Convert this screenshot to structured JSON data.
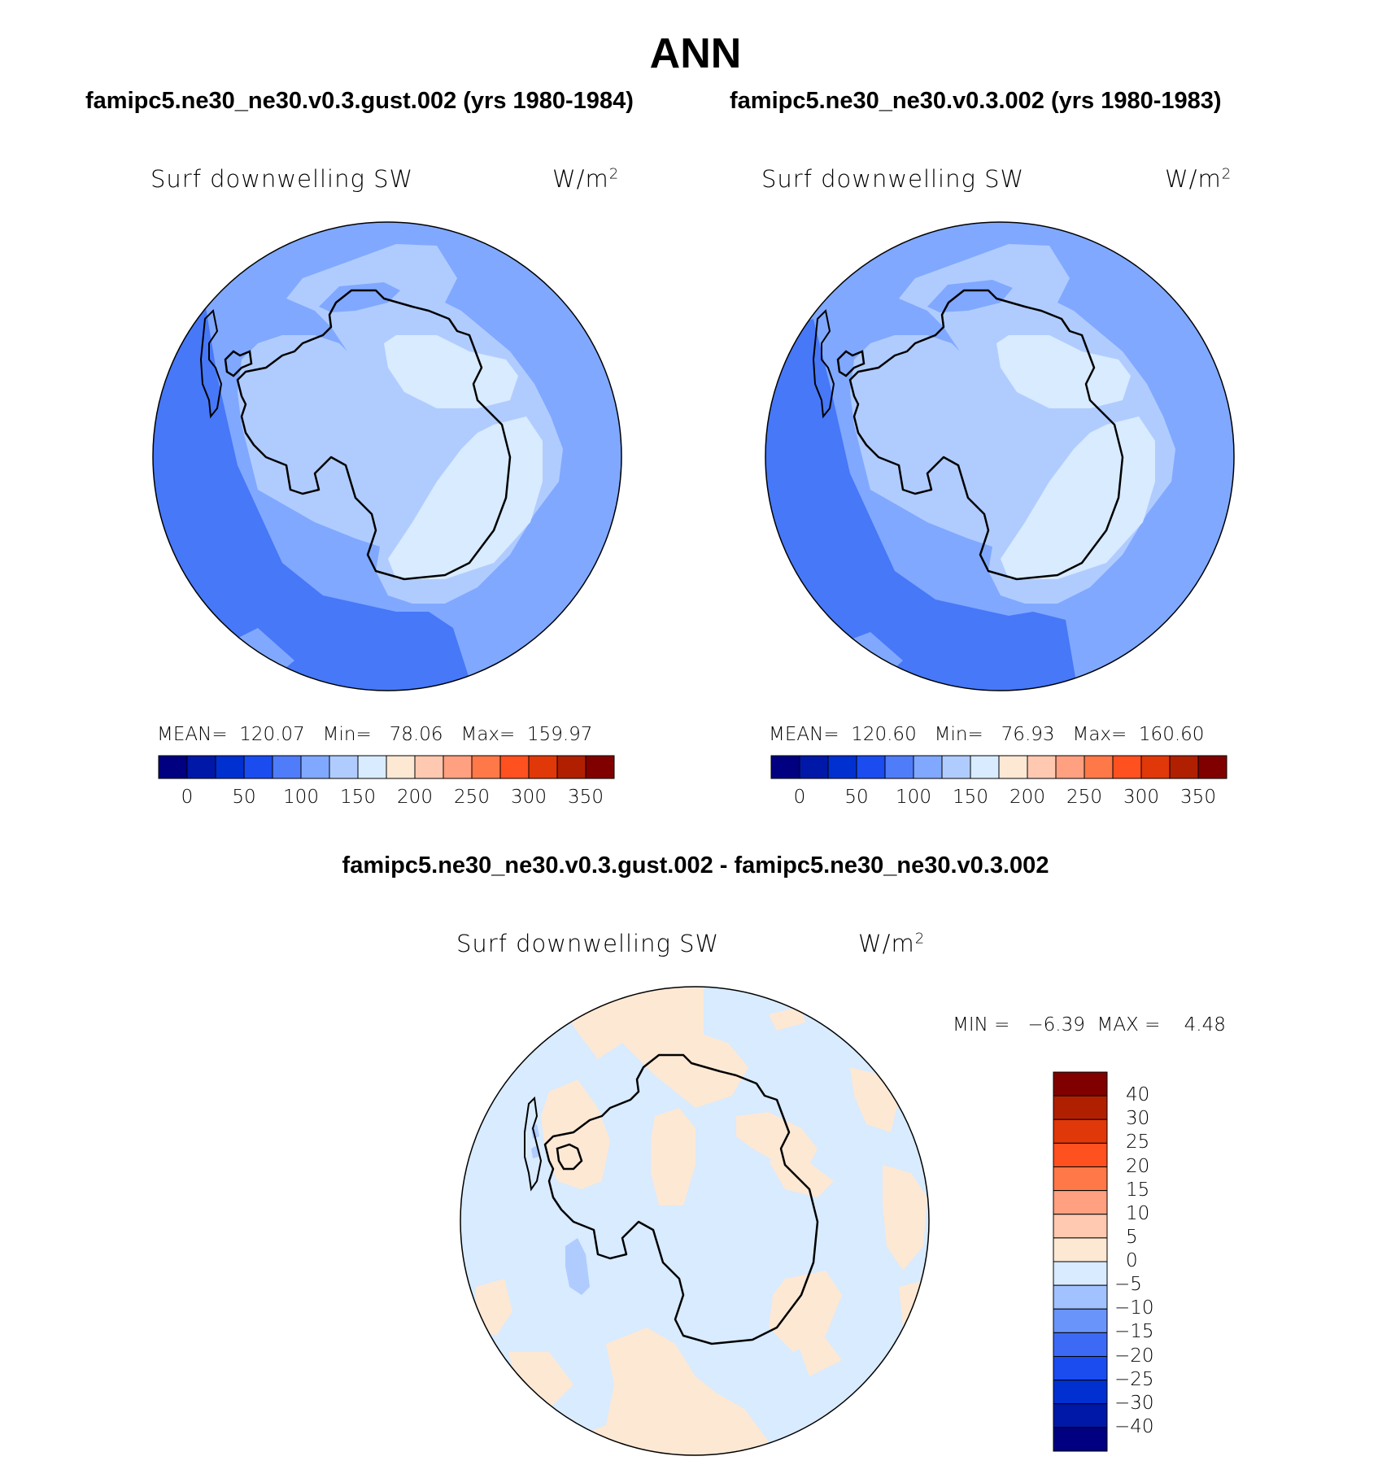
{
  "header": {
    "title": "ANN",
    "left_case": "famipc5.ne30_ne30.v0.3.gust.002 (yrs 1980-1984)",
    "right_case": "famipc5.ne30_ne30.v0.3.002 (yrs 1980-1983)",
    "diff_title": "famipc5.ne30_ne30.v0.3.gust.002 - famipc5.ne30_ne30.v0.3.002"
  },
  "panels": [
    {
      "variable": "Surf downwelling SW",
      "units_base": "W/m",
      "units_exp": "2",
      "mean_label": "MEAN=",
      "mean_value": "120.07",
      "min_label": "Min=",
      "min_value": "78.06",
      "max_label": "Max=",
      "max_value": "159.97"
    },
    {
      "variable": "Surf downwelling SW",
      "units_base": "W/m",
      "units_exp": "2",
      "mean_label": "MEAN=",
      "mean_value": "120.60",
      "min_label": "Min=",
      "min_value": "76.93",
      "max_label": "Max=",
      "max_value": "160.60"
    }
  ],
  "diff_panel": {
    "variable": "Surf downwelling SW",
    "units_base": "W/m",
    "units_exp": "2",
    "min_label": "MIN =",
    "min_value": "−6.39",
    "max_label": "MAX =",
    "max_value": "4.48"
  },
  "colorbar_abs": {
    "colors": [
      "#000080",
      "#0018a8",
      "#0030d0",
      "#1a4cf0",
      "#4f7cf8",
      "#80a8ff",
      "#b0ccff",
      "#d8ebff",
      "#fde8d4",
      "#ffc8b0",
      "#ffa080",
      "#ff7848",
      "#ff5020",
      "#e03808",
      "#b02000",
      "#800000"
    ],
    "ticks": [
      "0",
      "50",
      "100",
      "150",
      "200",
      "250",
      "300",
      "350"
    ]
  },
  "colorbar_diff": {
    "colors": [
      "#000080",
      "#0018a8",
      "#0030d0",
      "#1a4cf0",
      "#3d6af4",
      "#6994fa",
      "#a2c2ff",
      "#d8ebff",
      "#fde8d4",
      "#ffc8b0",
      "#ffa080",
      "#ff7848",
      "#ff5020",
      "#e03808",
      "#b02000",
      "#800000"
    ],
    "ticks": [
      "−40",
      "−30",
      "−25",
      "−20",
      "−15",
      "−10",
      "−5",
      "0",
      "5",
      "10",
      "15",
      "20",
      "25",
      "30",
      "40"
    ]
  },
  "map_colors": {
    "c80": "#4678f8",
    "c100": "#80a8ff",
    "c120": "#b0ccff",
    "c140": "#d8ebff",
    "diff_neg": "#d8ebff",
    "diff_pos": "#fde8d4",
    "diff_strong_neg": "#b0ccff"
  }
}
